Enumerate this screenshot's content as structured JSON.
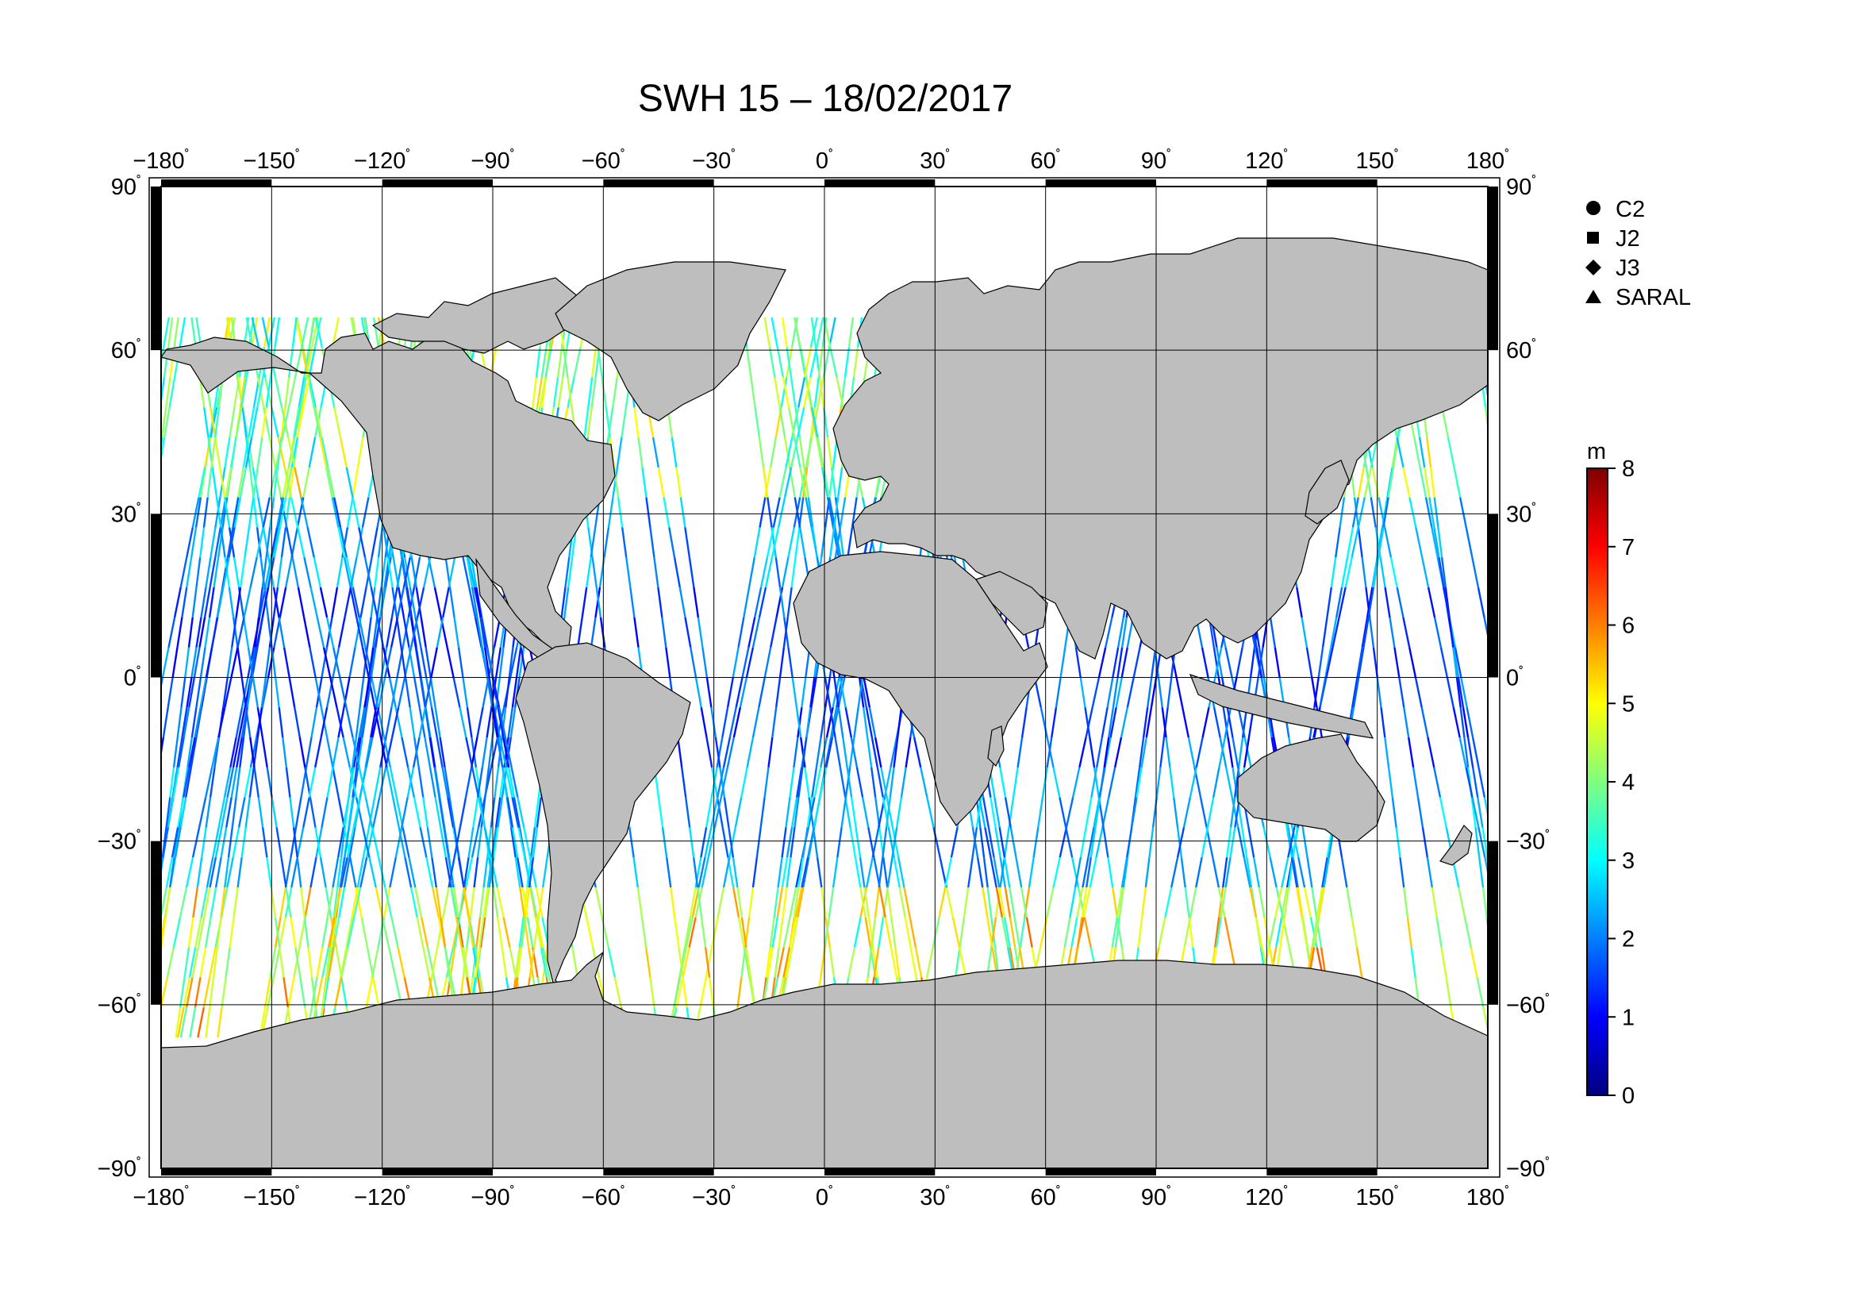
{
  "title": "SWH 15 – 18/02/2017",
  "degree_symbol": "˚",
  "lon_ticks": [
    "−180",
    "−150",
    "−120",
    "−90",
    "−60",
    "−30",
    "0",
    "30",
    "60",
    "90",
    "120",
    "150",
    "180"
  ],
  "lat_ticks": [
    "90",
    "60",
    "30",
    "0",
    "−30",
    "−60",
    "−90"
  ],
  "legend": [
    {
      "label": "C2",
      "marker": "circle"
    },
    {
      "label": "J2",
      "marker": "square"
    },
    {
      "label": "J3",
      "marker": "diamond"
    },
    {
      "label": "SARAL",
      "marker": "triangle"
    }
  ],
  "colorbar": {
    "unit": "m",
    "ticks": [
      "0",
      "1",
      "2",
      "3",
      "4",
      "5",
      "6",
      "7",
      "8"
    ],
    "min": 0,
    "max": 8,
    "stops": [
      "#00007f",
      "#0000ff",
      "#007fff",
      "#00ffff",
      "#7fff7f",
      "#ffff00",
      "#ff7f00",
      "#ff0000",
      "#7f0000"
    ]
  },
  "colors": {
    "land": "#bebebe",
    "ocean": "#ffffff",
    "frame": "#000000"
  }
}
